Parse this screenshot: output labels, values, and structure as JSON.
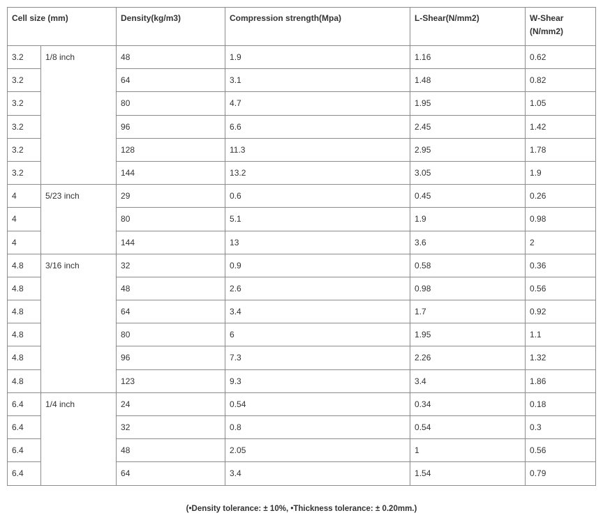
{
  "headers": [
    "Cell size  (mm)",
    "Density(kg/m3)",
    "Compression strength(Mpa)",
    "L-Shear(N/mm2)",
    "W-Shear (N/mm2)"
  ],
  "groups": [
    {
      "inch": "1/8 inch",
      "rows": [
        [
          "3.2",
          "48",
          "1.9",
          "1.16",
          "0.62"
        ],
        [
          "3.2",
          "64",
          "3.1",
          "1.48",
          "0.82"
        ],
        [
          "3.2",
          "80",
          "4.7",
          "1.95",
          "1.05"
        ],
        [
          "3.2",
          "96",
          "6.6",
          "2.45",
          "1.42"
        ],
        [
          "3.2",
          "128",
          "11.3",
          "2.95",
          "1.78"
        ],
        [
          "3.2",
          "144",
          "13.2",
          "3.05",
          "1.9"
        ]
      ]
    },
    {
      "inch": "5/23 inch",
      "rows": [
        [
          "4",
          "29",
          "0.6",
          "0.45",
          "0.26"
        ],
        [
          "4",
          "80",
          "5.1",
          "1.9",
          "0.98"
        ],
        [
          "4",
          "144",
          "13",
          "3.6",
          "2"
        ]
      ]
    },
    {
      "inch": "3/16 inch",
      "rows": [
        [
          "4.8",
          "32",
          "0.9",
          "0.58",
          "0.36"
        ],
        [
          "4.8",
          "48",
          "2.6",
          "0.98",
          "0.56"
        ],
        [
          "4.8",
          "64",
          "3.4",
          "1.7",
          "0.92"
        ],
        [
          "4.8",
          "80",
          "6",
          "1.95",
          "1.1"
        ],
        [
          "4.8",
          "96",
          "7.3",
          "2.26",
          "1.32"
        ],
        [
          "4.8",
          "123",
          "9.3",
          "3.4",
          "1.86"
        ]
      ]
    },
    {
      "inch": "1/4 inch",
      "rows": [
        [
          "6.4",
          "24",
          "0.54",
          "0.34",
          "0.18"
        ],
        [
          "6.4",
          "32",
          "0.8",
          "0.54",
          "0.3"
        ],
        [
          "6.4",
          "48",
          "2.05",
          "1",
          "0.56"
        ],
        [
          "6.4",
          "64",
          "3.4",
          "1.54",
          "0.79"
        ]
      ]
    }
  ],
  "note": "(•Density tolerance: ± 10%, •Thickness tolerance: ± 0.20mm.)"
}
